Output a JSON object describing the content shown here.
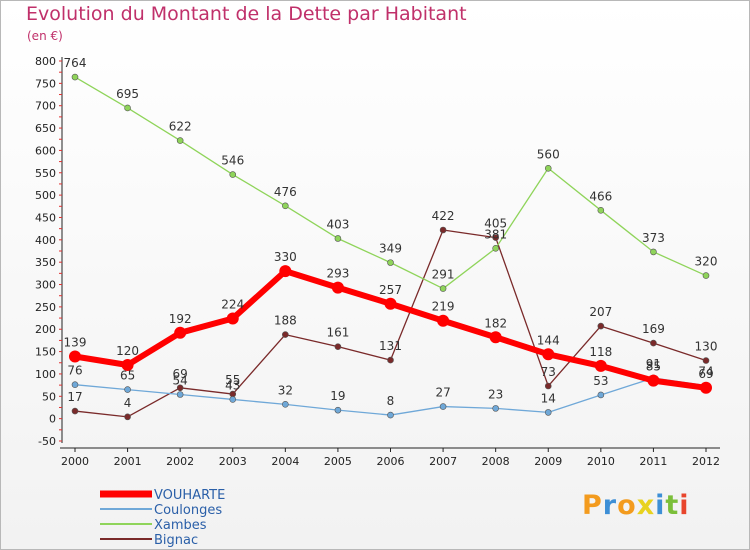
{
  "chart_data": {
    "type": "line",
    "title": "Evolution du Montant de la Dette par Habitant",
    "subtitle": "(en €)",
    "xlabel": "",
    "ylabel": "",
    "x": [
      "2000",
      "2001",
      "2002",
      "2003",
      "2004",
      "2005",
      "2006",
      "2007",
      "2008",
      "2009",
      "2010",
      "2011",
      "2012"
    ],
    "ylim": [
      -50,
      800
    ],
    "yticks": [
      -50,
      0,
      50,
      100,
      150,
      200,
      250,
      300,
      350,
      400,
      450,
      500,
      550,
      600,
      650,
      700,
      750,
      800
    ],
    "grid": false,
    "legend": "bottom-left",
    "series": [
      {
        "name": "VOUHARTE",
        "color": "#ff0000",
        "values": [
          139,
          120,
          192,
          224,
          330,
          293,
          257,
          219,
          182,
          144,
          118,
          85,
          69
        ]
      },
      {
        "name": "Coulonges",
        "color": "#6fa8d8",
        "values": [
          76,
          65,
          54,
          43,
          32,
          19,
          8,
          27,
          23,
          14,
          53,
          91,
          74
        ]
      },
      {
        "name": "Xambes",
        "color": "#8fd45a",
        "values": [
          764,
          695,
          622,
          546,
          476,
          403,
          349,
          291,
          381,
          560,
          466,
          373,
          320
        ]
      },
      {
        "name": "Bignac",
        "color": "#7a2a2a",
        "values": [
          17,
          4,
          69,
          55,
          188,
          161,
          131,
          422,
          405,
          73,
          207,
          169,
          130
        ]
      }
    ]
  },
  "logo": {
    "letters": [
      "P",
      "r",
      "o",
      "x",
      "i",
      "t",
      "i"
    ],
    "colors": [
      "#f39b1e",
      "#3d8fd6",
      "#f39b1e",
      "#e8d21e",
      "#3d8fd6",
      "#7bbf3a",
      "#e8452c"
    ]
  }
}
